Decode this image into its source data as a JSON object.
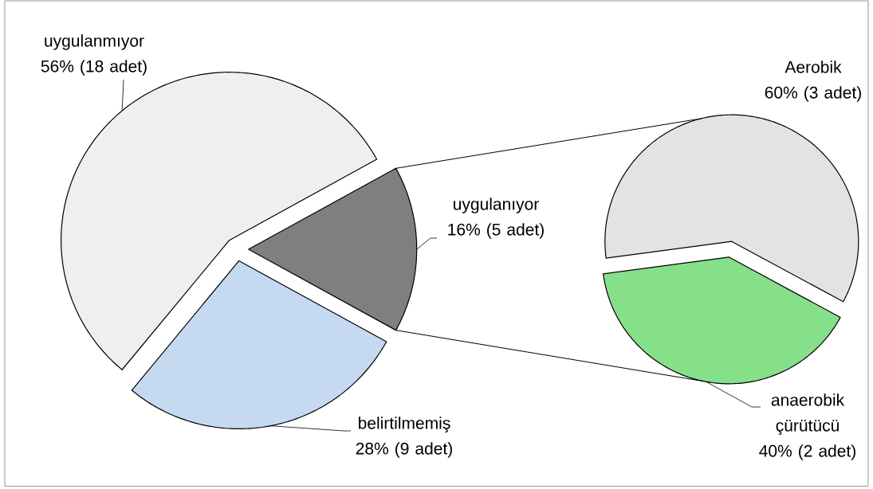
{
  "chart_data": [
    {
      "type": "pie",
      "categories": [
        "uygulanmıyor",
        "uygulanıyor",
        "belirtilmemiş"
      ],
      "values": [
        56,
        16,
        28
      ],
      "colors": [
        "#efefef",
        "#7f7f7f",
        "#c5d9f1"
      ],
      "value_labels": [
        "56% (18 adet)",
        "16% (5 adet)",
        "28% (9 adet)"
      ]
    },
    {
      "type": "pie",
      "categories": [
        "Aerobik",
        "anaerobik çürütücü"
      ],
      "values": [
        60,
        40
      ],
      "colors": [
        "#e3e3e3",
        "#86e08a"
      ],
      "value_labels": [
        "60% (3 adet)",
        "40% (2 adet)"
      ]
    }
  ]
}
